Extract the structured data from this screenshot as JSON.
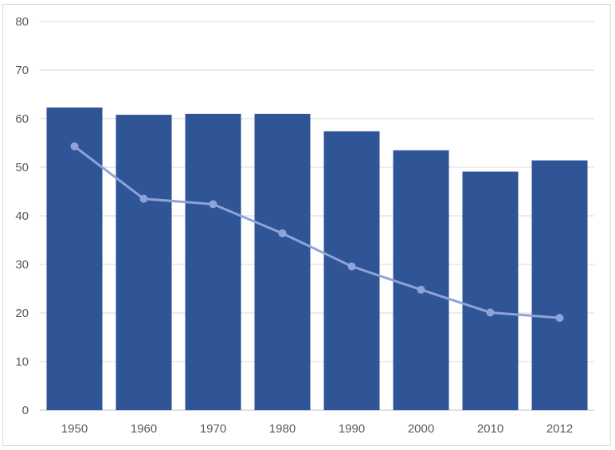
{
  "chart_data": {
    "type": "bar",
    "categories": [
      "1950",
      "1960",
      "1970",
      "1980",
      "1990",
      "2000",
      "2010",
      "2012"
    ],
    "series": [
      {
        "type": "bar",
        "values": [
          62.3,
          60.8,
          61.0,
          61.0,
          57.4,
          53.5,
          49.1,
          51.4
        ],
        "color": "#2f5597"
      },
      {
        "type": "line",
        "values": [
          54.3,
          43.5,
          42.4,
          36.4,
          29.6,
          24.8,
          20.1,
          19.0
        ],
        "color": "#8fa3d9"
      }
    ],
    "ylim": [
      0,
      80
    ],
    "yticks": [
      "0",
      "10",
      "20",
      "30",
      "40",
      "50",
      "60",
      "70",
      "80"
    ],
    "xlabel": "",
    "ylabel": "",
    "title": "",
    "grid": true,
    "legend": "none",
    "colors": {
      "grid": "#d9d9d9",
      "axis": "#bfbfbf",
      "tick_text": "#595959"
    }
  }
}
